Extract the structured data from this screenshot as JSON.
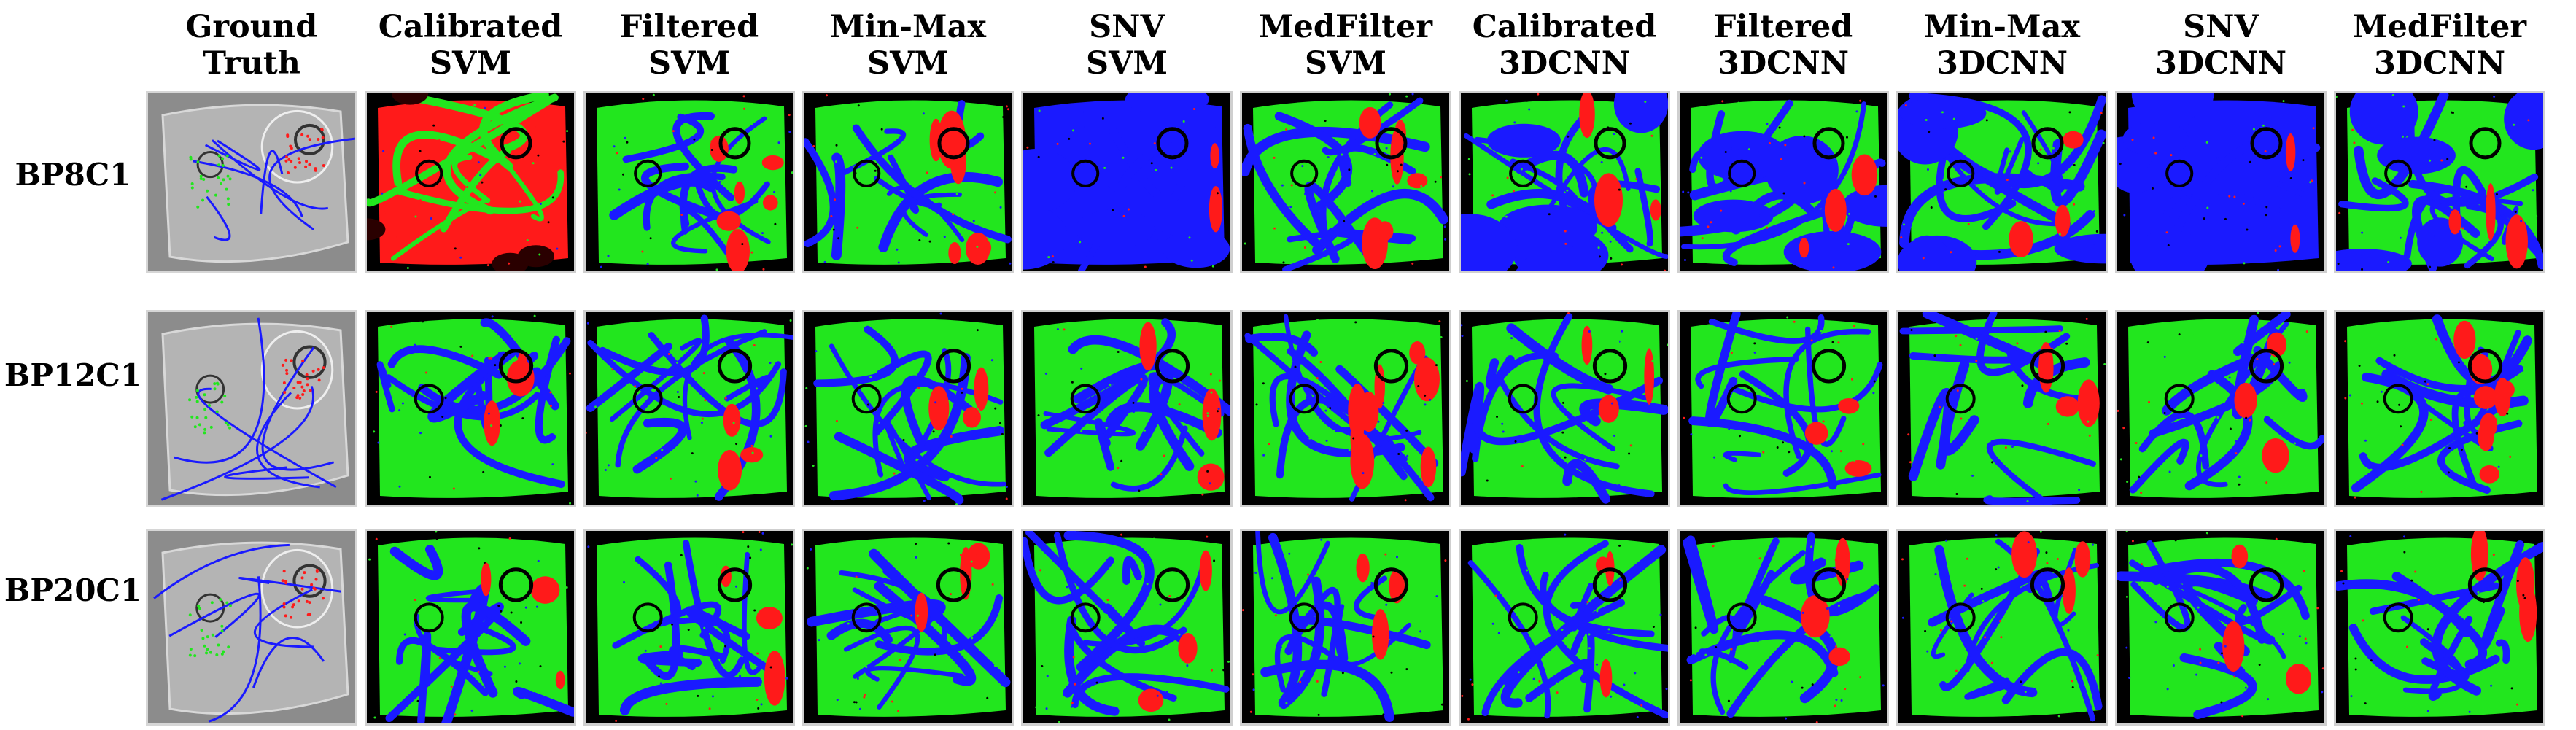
{
  "columns": [
    {
      "line1": "Ground",
      "line2": "Truth"
    },
    {
      "line1": "Calibrated",
      "line2": "SVM"
    },
    {
      "line1": "Filtered",
      "line2": "SVM"
    },
    {
      "line1": "Min-Max",
      "line2": "SVM"
    },
    {
      "line1": "SNV",
      "line2": "SVM"
    },
    {
      "line1": "MedFilter",
      "line2": "SVM"
    },
    {
      "line1": "Calibrated",
      "line2": "3DCNN"
    },
    {
      "line1": "Filtered",
      "line2": "3DCNN"
    },
    {
      "line1": "Min-Max",
      "line2": "3DCNN"
    },
    {
      "line1": "SNV",
      "line2": "3DCNN"
    },
    {
      "line1": "MedFilter",
      "line2": "3DCNN"
    }
  ],
  "rows": [
    {
      "label": "BP8C1"
    },
    {
      "label": "BP12C1"
    },
    {
      "label": "BP20C1"
    }
  ],
  "colors": {
    "tumor": "#ff1a1a",
    "normal": "#22e61e",
    "blood_vessel": "#1a1aff",
    "background": "#000000",
    "ground_truth_tissue": "#9a9a9a"
  },
  "map_dominance": [
    [
      "gt",
      "red",
      "mixed",
      "mixed",
      "blue",
      "mixed",
      "bluegreen",
      "bluegreen",
      "bluegreen",
      "blue",
      "bluegreen"
    ],
    [
      "gt",
      "greenblue",
      "greenblue",
      "greenblue",
      "greenblue",
      "mixedred",
      "greenblue",
      "greenblue",
      "greenblue",
      "greenblue",
      "greenbluered"
    ],
    [
      "gt",
      "greenblue",
      "greenblue",
      "greenblue",
      "greenblue",
      "greenblue",
      "greenblue",
      "greenblue",
      "greenblue",
      "greenblue",
      "greenblue"
    ]
  ]
}
